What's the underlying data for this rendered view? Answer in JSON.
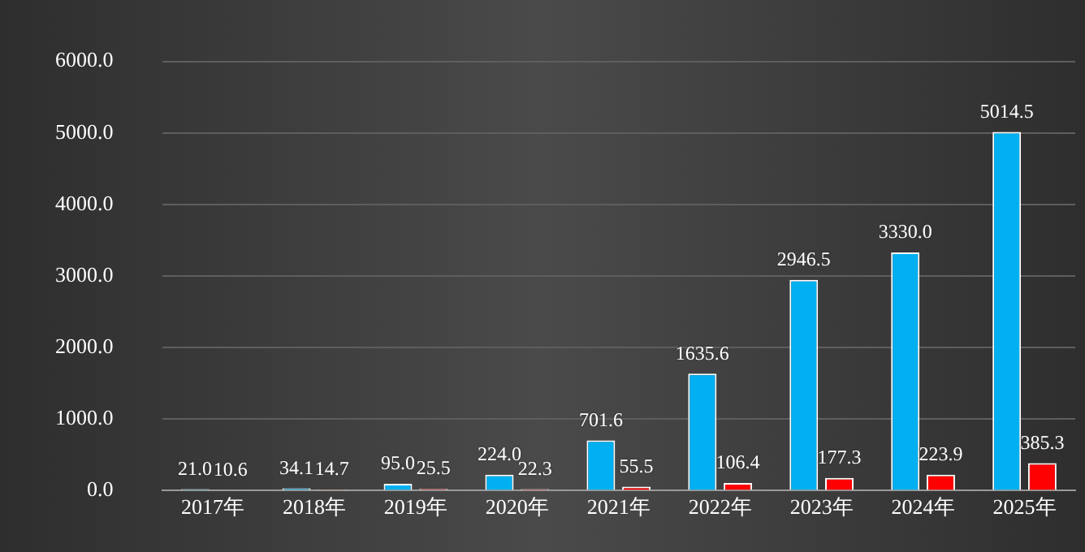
{
  "chart_data": {
    "type": "bar",
    "categories": [
      "2017年",
      "2018年",
      "2019年",
      "2020年",
      "2021年",
      "2022年",
      "2023年",
      "2024年",
      "2025年"
    ],
    "series": [
      {
        "color": "#00b0f0",
        "values": [
          21.0,
          34.1,
          95.0,
          224.0,
          701.6,
          1635.6,
          2946.5,
          3330.0,
          5014.5
        ],
        "value_labels": [
          "21.0",
          "34.1",
          "95.0",
          "224.0",
          "701.6",
          "1635.6",
          "2946.5",
          "3330.0",
          "5014.5"
        ]
      },
      {
        "color": "#ff0000",
        "values": [
          10.6,
          14.7,
          25.5,
          22.3,
          55.5,
          106.4,
          177.3,
          223.9,
          385.3
        ],
        "value_labels": [
          "10.6",
          "14.7",
          "25.5",
          "22.3",
          "55.5",
          "106.4",
          "177.3",
          "223.9",
          "385.3"
        ]
      }
    ],
    "ylim": [
      0,
      6000
    ],
    "yticks": [
      {
        "value": 0,
        "label": "0.0"
      },
      {
        "value": 1000,
        "label": "1000.0"
      },
      {
        "value": 2000,
        "label": "2000.0"
      },
      {
        "value": 3000,
        "label": "3000.0"
      },
      {
        "value": 4000,
        "label": "4000.0"
      },
      {
        "value": 5000,
        "label": "5000.0"
      },
      {
        "value": 6000,
        "label": "6000.0"
      }
    ],
    "grid": "y",
    "legend": false
  }
}
